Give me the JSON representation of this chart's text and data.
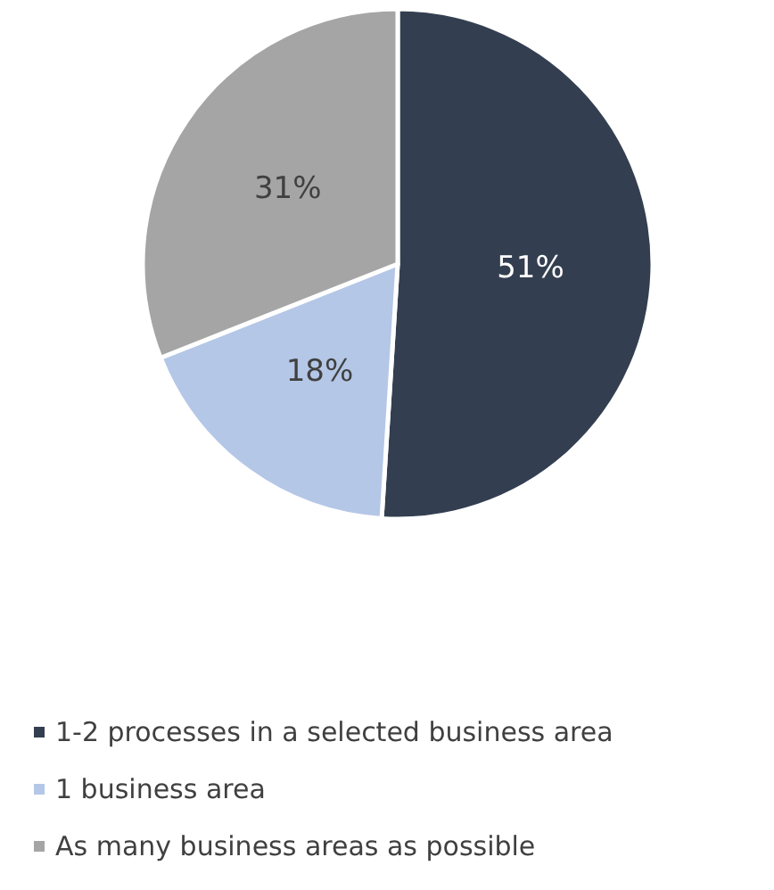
{
  "chart_data": {
    "type": "pie",
    "categories": [
      "1-2 processes in a selected business area",
      "1 business area",
      "As many business areas as possible"
    ],
    "values": [
      51,
      18,
      31
    ],
    "value_labels": [
      "51%",
      "18%",
      "31%"
    ],
    "colors": [
      "#333f50",
      "#b4c7e7",
      "#a5a5a5"
    ],
    "legend": "bottom"
  }
}
